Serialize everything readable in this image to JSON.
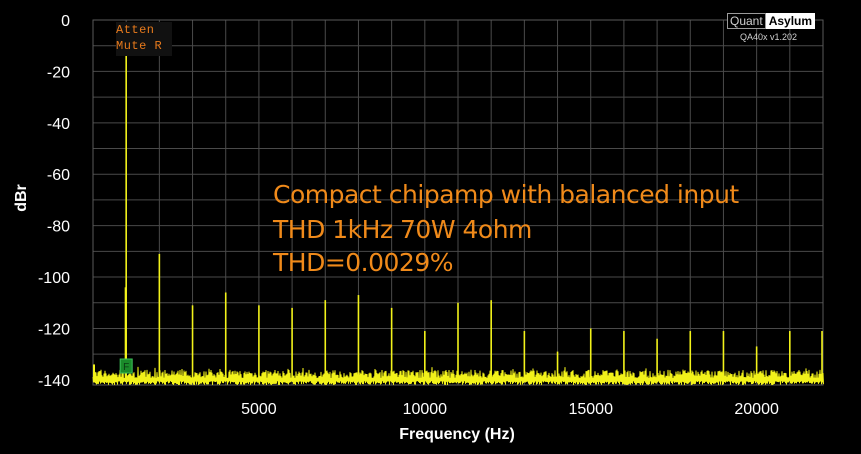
{
  "app": {
    "logo_left": "Quant",
    "logo_right": "Asylum",
    "version": "QA40x v1.202"
  },
  "badges": {
    "line1": "Atten",
    "line2": "Mute R"
  },
  "annotation": {
    "line1": "Compact chipamp with balanced input",
    "line2": "THD 1kHz 70W 4ohm",
    "line3": "THD=0.0029%"
  },
  "colors": {
    "background": "#000000",
    "plot_background": "#000000",
    "grid": "#4a4a4a",
    "trace": "#f2f21a",
    "annotation": "#f08a1a",
    "marker": "#1a8a2a"
  },
  "chart_data": {
    "type": "line",
    "title": "",
    "xlabel": "Frequency (Hz)",
    "ylabel": "dBr",
    "xlim": [
      0,
      22000
    ],
    "ylim": [
      -142,
      0
    ],
    "x_ticks": [
      5000,
      10000,
      15000,
      20000
    ],
    "y_ticks": [
      0,
      -20,
      -40,
      -60,
      -80,
      -100,
      -120,
      -140
    ],
    "grid": true,
    "legend": "none",
    "noise_floor_dB": -139,
    "series": [
      {
        "x": [
          1000,
          2000,
          3000,
          4000,
          5000,
          6000,
          7000,
          8000,
          9000,
          10000,
          11000,
          12000,
          13000,
          14000,
          15000,
          16000,
          17000,
          18000,
          19000,
          20000,
          21000,
          22000
        ],
        "values": [
          -13,
          -91,
          -111,
          -106,
          -111,
          -112,
          -109,
          -107,
          -112,
          -121,
          -110,
          -109,
          -121,
          -129,
          -120,
          -121,
          -124,
          -121,
          -121,
          -127,
          -121,
          -121
        ]
      }
    ],
    "marker": {
      "x": 1000,
      "y": -135,
      "label": "F"
    }
  }
}
